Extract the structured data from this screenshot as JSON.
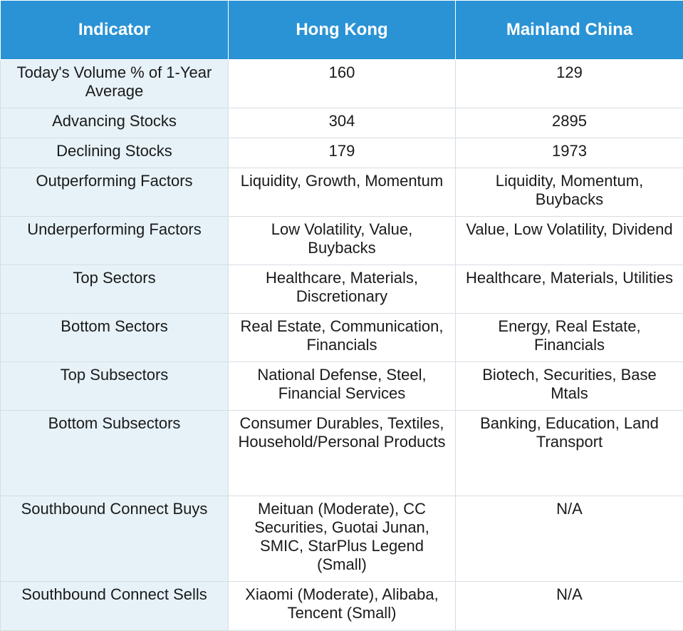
{
  "headers": [
    "Indicator",
    "Hong Kong",
    "Mainland China"
  ],
  "rows": [
    [
      "Today's Volume % of 1-Year Average",
      "160",
      "129"
    ],
    [
      "Advancing Stocks",
      "304",
      "2895"
    ],
    [
      "Declining Stocks",
      "179",
      "1973"
    ],
    [
      "Outperforming Factors",
      "Liquidity, Growth, Momentum",
      "Liquidity, Momentum, Buybacks"
    ],
    [
      "Underperforming Factors",
      "Low Volatility, Value, Buybacks",
      "Value, Low Volatility, Dividend"
    ],
    [
      "Top Sectors",
      "Healthcare, Materials, Discretionary",
      "Healthcare, Materials, Utilities"
    ],
    [
      "Bottom Sectors",
      "Real Estate, Communication, Financials",
      "Energy, Real Estate, Financials"
    ],
    [
      "Top Subsectors",
      "National Defense, Steel, Financial Services",
      "Biotech, Securities, Base Mtals"
    ],
    [
      "Bottom Subsectors",
      "Consumer Durables, Textiles, Household/Personal Products",
      "Banking, Education, Land Transport"
    ],
    [
      "Southbound Connect Buys",
      "Meituan (Moderate), CC Securities, Guotai Junan, SMIC, StarPlus Legend (Small)",
      "N/A"
    ],
    [
      "Southbound Connect Sells",
      "Xiaomi (Moderate), Alibaba, Tencent (Small)",
      "N/A"
    ]
  ],
  "colors": {
    "header_bg": "#2a93d5",
    "header_text": "#ffffff",
    "label_bg": "#e6f2f8",
    "grid": "#d6dde3"
  }
}
